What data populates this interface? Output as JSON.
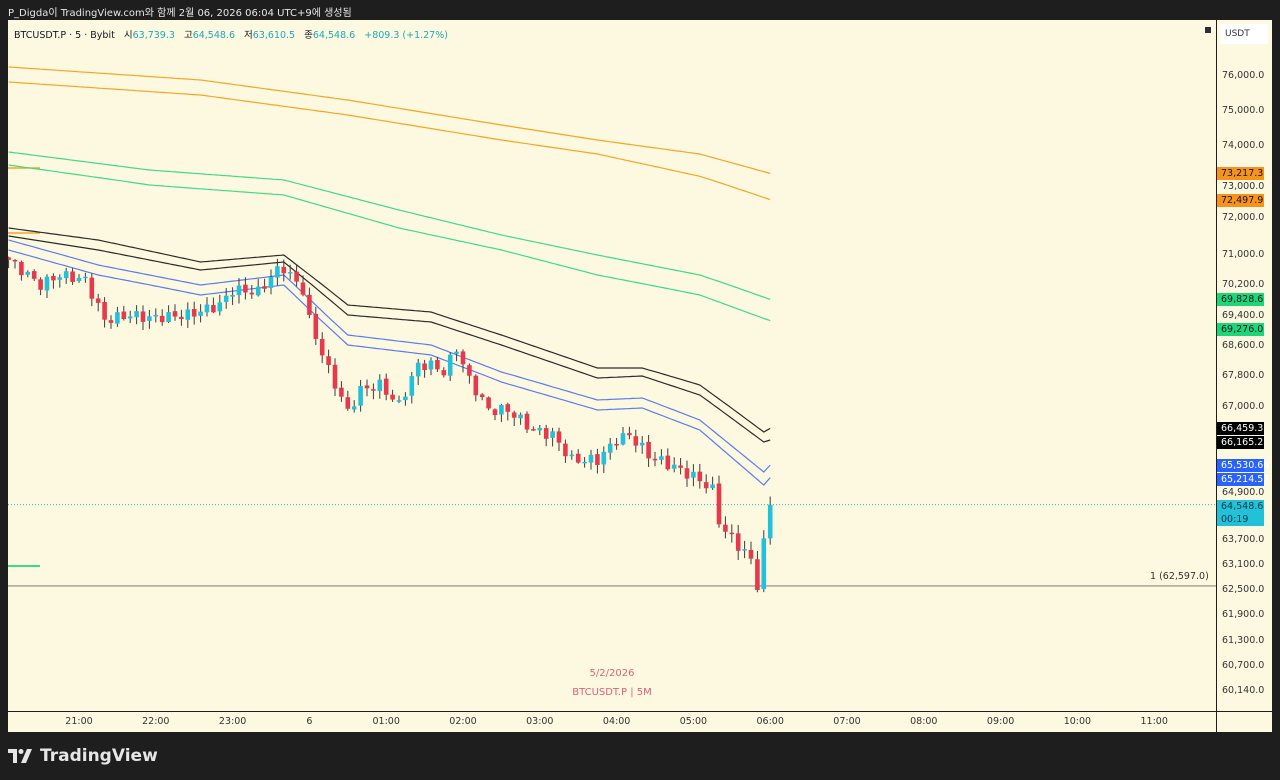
{
  "header": {
    "title": "P_Digda이 TradingView.com와 함께 2월 06, 2026 06:04 UTC+9에 생성됨"
  },
  "legend": {
    "symbol": "BTCUSDT.P · 5 · Bybit",
    "open_label": "시",
    "open": "63,739.3",
    "high_label": "고",
    "high": "64,548.6",
    "low_label": "저",
    "low": "63,610.5",
    "close_label": "종",
    "close": "64,548.6",
    "change": "+809.3 (+1.27%)"
  },
  "price_axis": {
    "currency": "USDT",
    "ticks": [
      {
        "label": "76,000.0",
        "value": 76000
      },
      {
        "label": "75,000.0",
        "value": 75000
      },
      {
        "label": "74,000.0",
        "value": 74000
      },
      {
        "label": "73,000.0",
        "value": 73000
      },
      {
        "label": "72,000.0",
        "value": 72000
      },
      {
        "label": "71,000.0",
        "value": 71000
      },
      {
        "label": "70,200.0",
        "value": 70200
      },
      {
        "label": "69,400.0",
        "value": 69400
      },
      {
        "label": "68,600.0",
        "value": 68600
      },
      {
        "label": "67,800.0",
        "value": 67800
      },
      {
        "label": "67,000.0",
        "value": 67000
      },
      {
        "label": "64,900.0",
        "value": 64900
      },
      {
        "label": "63,700.0",
        "value": 63700
      },
      {
        "label": "63,100.0",
        "value": 63100
      },
      {
        "label": "62,500.0",
        "value": 62500
      },
      {
        "label": "61,900.0",
        "value": 61900
      },
      {
        "label": "61,300.0",
        "value": 61300
      },
      {
        "label": "60,700.0",
        "value": 60700
      },
      {
        "label": "60,140.0",
        "value": 60140
      }
    ],
    "badges": [
      {
        "label": "73,217.3",
        "value": 73217.3,
        "bg": "#f7931a",
        "fg": "#131722"
      },
      {
        "label": "72,497.9",
        "value": 72497.9,
        "bg": "#f7931a",
        "fg": "#131722"
      },
      {
        "label": "69,828.6",
        "value": 69828.6,
        "bg": "#1ed67a",
        "fg": "#131722"
      },
      {
        "label": "69,276.0",
        "value": 69276.0,
        "bg": "#1ed67a",
        "fg": "#131722"
      },
      {
        "label": "66,459.3",
        "value": 66459.3,
        "bg": "#000000",
        "fg": "#ffffff"
      },
      {
        "label": "66,165.2",
        "value": 66165.2,
        "bg": "#000000",
        "fg": "#ffffff"
      },
      {
        "label": "65,530.66",
        "value": 65530.66,
        "bg": "#2962ff",
        "fg": "#ffffff"
      },
      {
        "label": "65,214.57",
        "value": 65214.57,
        "bg": "#2962ff",
        "fg": "#ffffff"
      }
    ],
    "last_price": {
      "label": "64,548.6",
      "countdown": "00:19",
      "value": 64548.6,
      "bg": "#22c1d9"
    }
  },
  "time_axis": {
    "labels": [
      {
        "label": "21:00",
        "index": 11
      },
      {
        "label": "22:00",
        "index": 23
      },
      {
        "label": "23:00",
        "index": 35
      },
      {
        "label": "6",
        "index": 47
      },
      {
        "label": "01:00",
        "index": 59
      },
      {
        "label": "02:00",
        "index": 71
      },
      {
        "label": "03:00",
        "index": 83
      },
      {
        "label": "04:00",
        "index": 95
      },
      {
        "label": "05:00",
        "index": 107
      },
      {
        "label": "06:00",
        "index": 119
      },
      {
        "label": "07:00",
        "index": 131
      },
      {
        "label": "08:00",
        "index": 143
      },
      {
        "label": "09:00",
        "index": 155
      },
      {
        "label": "10:00",
        "index": 167
      },
      {
        "label": "11:00",
        "index": 179
      }
    ]
  },
  "horizontal_line": {
    "label": "1 (62,597.0)",
    "value": 62597.0
  },
  "watermark": {
    "date": "5/2/2026",
    "symbol": "BTCUSDT.P | 5M"
  },
  "brand": {
    "name": "TradingView"
  },
  "colors": {
    "up": "#22c1d9",
    "down": "#e8394c",
    "orange": "#f5a623",
    "green": "#3ddc84",
    "black": "#2b2b2b",
    "blue": "#5b7cf0"
  },
  "chart_data": {
    "type": "candlestick",
    "candle_count": 120,
    "close_keypoints": [
      [
        0,
        70870
      ],
      [
        5,
        70200
      ],
      [
        8,
        70467
      ],
      [
        12,
        70333
      ],
      [
        15,
        69293
      ],
      [
        19,
        69427
      ],
      [
        22,
        69347
      ],
      [
        28,
        69427
      ],
      [
        33,
        69684
      ],
      [
        35,
        70071
      ],
      [
        39,
        70019
      ],
      [
        42,
        70600
      ],
      [
        43,
        70653
      ],
      [
        46,
        70071
      ],
      [
        47,
        69293
      ],
      [
        50,
        67960
      ],
      [
        53,
        66874
      ],
      [
        55,
        67439
      ],
      [
        58,
        67568
      ],
      [
        61,
        67052
      ],
      [
        64,
        68093
      ],
      [
        66,
        68093
      ],
      [
        68,
        67907
      ],
      [
        70,
        68547
      ],
      [
        72,
        67697
      ],
      [
        75,
        66924
      ],
      [
        78,
        66924
      ],
      [
        82,
        66418
      ],
      [
        85,
        66292
      ],
      [
        88,
        65659
      ],
      [
        92,
        65659
      ],
      [
        95,
        66165
      ],
      [
        97,
        66292
      ],
      [
        100,
        65786
      ],
      [
        105,
        65406
      ],
      [
        108,
        65153
      ],
      [
        110,
        64900
      ],
      [
        111,
        64180
      ],
      [
        112,
        63900
      ],
      [
        114,
        63580
      ],
      [
        115,
        63400
      ],
      [
        116,
        63220
      ],
      [
        117,
        62500
      ],
      [
        118,
        63739.3
      ],
      [
        119,
        64548.6
      ]
    ],
    "bands": [
      {
        "name": "orange-upper",
        "color": "orange",
        "points": [
          [
            0,
            76257
          ],
          [
            30,
            75886
          ],
          [
            53,
            75314
          ],
          [
            77,
            74600
          ],
          [
            92,
            74171
          ],
          [
            108,
            73771
          ],
          [
            119,
            73217.3
          ]
        ]
      },
      {
        "name": "orange-lower",
        "color": "orange",
        "points": [
          [
            0,
            75829
          ],
          [
            30,
            75457
          ],
          [
            53,
            74886
          ],
          [
            77,
            74171
          ],
          [
            92,
            73771
          ],
          [
            108,
            73135
          ],
          [
            119,
            72497.9
          ]
        ]
      },
      {
        "name": "green-upper",
        "color": "green",
        "points": [
          [
            0,
            73829
          ],
          [
            22,
            73314
          ],
          [
            43,
            73029
          ],
          [
            61,
            72216
          ],
          [
            77,
            71541
          ],
          [
            92,
            71000
          ],
          [
            108,
            70467
          ],
          [
            119,
            69828.6
          ]
        ]
      },
      {
        "name": "green-lower",
        "color": "green",
        "points": [
          [
            0,
            73457
          ],
          [
            22,
            72892
          ],
          [
            43,
            72622
          ],
          [
            61,
            71730
          ],
          [
            77,
            71135
          ],
          [
            92,
            70467
          ],
          [
            108,
            69942
          ],
          [
            119,
            69276
          ]
        ]
      },
      {
        "name": "black-upper",
        "color": "black",
        "points": [
          [
            0,
            71730
          ],
          [
            14,
            71405
          ],
          [
            30,
            70813
          ],
          [
            43,
            71000
          ],
          [
            53,
            69684
          ],
          [
            66,
            69503
          ],
          [
            77,
            68893
          ],
          [
            92,
            68013
          ],
          [
            99,
            68013
          ],
          [
            108,
            67568
          ],
          [
            118,
            66367
          ],
          [
            119,
            66459.3
          ]
        ]
      },
      {
        "name": "black-lower",
        "color": "black",
        "points": [
          [
            0,
            71514
          ],
          [
            14,
            71135
          ],
          [
            30,
            70600
          ],
          [
            43,
            70813
          ],
          [
            53,
            69427
          ],
          [
            66,
            69240
          ],
          [
            77,
            68627
          ],
          [
            92,
            67748
          ],
          [
            99,
            67800
          ],
          [
            108,
            67310
          ],
          [
            118,
            66114
          ],
          [
            119,
            66165.2
          ]
        ]
      },
      {
        "name": "blue-upper",
        "color": "blue",
        "points": [
          [
            0,
            71405
          ],
          [
            14,
            70733
          ],
          [
            30,
            70200
          ],
          [
            43,
            70467
          ],
          [
            53,
            68893
          ],
          [
            66,
            68627
          ],
          [
            77,
            67907
          ],
          [
            92,
            67181
          ],
          [
            99,
            67232
          ],
          [
            108,
            66671
          ],
          [
            118,
            65355
          ],
          [
            119,
            65530.66
          ]
        ]
      },
      {
        "name": "blue-lower",
        "color": "blue",
        "points": [
          [
            0,
            71135
          ],
          [
            14,
            70467
          ],
          [
            30,
            69942
          ],
          [
            43,
            70200
          ],
          [
            53,
            68627
          ],
          [
            66,
            68360
          ],
          [
            77,
            67645
          ],
          [
            92,
            66924
          ],
          [
            99,
            66975
          ],
          [
            108,
            66418
          ],
          [
            118,
            65026
          ],
          [
            119,
            65214.57
          ]
        ]
      }
    ]
  }
}
